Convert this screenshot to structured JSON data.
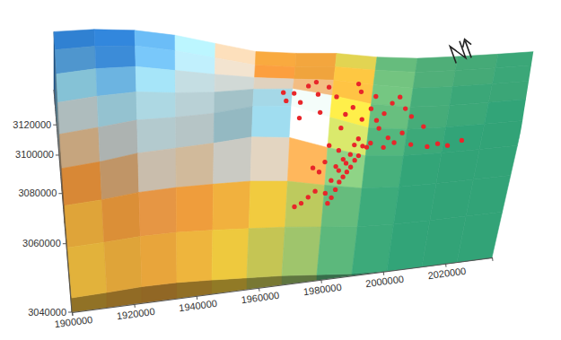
{
  "chart_data": {
    "type": "surface",
    "xlim": [
      1900000,
      2035000
    ],
    "ylim": [
      3040000,
      3150000
    ],
    "xticks": [
      1900000,
      1920000,
      1940000,
      1960000,
      1980000,
      2000000,
      2020000
    ],
    "yticks": [
      3040000,
      3060000,
      3080000,
      3100000,
      3120000
    ],
    "surface": {
      "zlim": [
        0,
        100
      ],
      "z": [
        [
          40,
          42,
          43,
          41,
          38,
          35,
          32,
          26,
          23,
          22,
          22,
          22
        ],
        [
          42,
          45,
          47,
          45,
          42,
          38,
          34,
          27,
          23,
          22,
          22,
          22
        ],
        [
          46,
          52,
          58,
          56,
          60,
          58,
          48,
          30,
          24,
          22,
          22,
          22
        ],
        [
          54,
          62,
          66,
          64,
          70,
          74,
          60,
          34,
          25,
          23,
          22,
          22
        ],
        [
          64,
          72,
          70,
          66,
          68,
          72,
          62,
          38,
          27,
          24,
          23,
          22
        ],
        [
          76,
          82,
          74,
          66,
          62,
          58,
          52,
          42,
          28,
          24,
          23,
          23
        ],
        [
          86,
          90,
          82,
          70,
          58,
          46,
          44,
          40,
          28,
          25,
          24,
          23
        ],
        [
          94,
          92,
          84,
          72,
          56,
          44,
          44,
          36,
          27,
          25,
          24,
          23
        ]
      ]
    },
    "series": [
      {
        "type": "scatter",
        "color": "#e8262a",
        "marker": "circle",
        "x": [
          1980000,
          1981000,
          1979000,
          1982000,
          1983000,
          1980500,
          1984000,
          1978500,
          1985000,
          1982500,
          1986000,
          1981500,
          1984500,
          1987000,
          1983500,
          1988000,
          1985500,
          1982000,
          1989000,
          1986500,
          1977000,
          1976000,
          1974000,
          1972000,
          1970000,
          1975000,
          1990000,
          1991000,
          1987500,
          1979000,
          1995000,
          1998000,
          2003000,
          2008000,
          2011000,
          2014000,
          2018000,
          1996000,
          2000000,
          1993000,
          2006000,
          1965000,
          1968000,
          1970000,
          1972000,
          1975000,
          1978000,
          1980000,
          1983000,
          1985000,
          1987000,
          1990000,
          1992000,
          1994000,
          1996000,
          1998000,
          2000000,
          2002000,
          1988000,
          1982000,
          1976000,
          1970000,
          1966000,
          1974000,
          1986000,
          1991000
        ],
        "y": [
          3062000,
          3064000,
          3066000,
          3067000,
          3069000,
          3070000,
          3071000,
          3072000,
          3073000,
          3074000,
          3075000,
          3076000,
          3077000,
          3078000,
          3079000,
          3080000,
          3081000,
          3082000,
          3083000,
          3084000,
          3068000,
          3065000,
          3063000,
          3061000,
          3060000,
          3070000,
          3086000,
          3088000,
          3087000,
          3085000,
          3085000,
          3087000,
          3086000,
          3084000,
          3085000,
          3084000,
          3086000,
          3090000,
          3092000,
          3095000,
          3095000,
          3100000,
          3104000,
          3098000,
          3108000,
          3102000,
          3106000,
          3110000,
          3100000,
          3104000,
          3112000,
          3108000,
          3100000,
          3104000,
          3110000,
          3114000,
          3106000,
          3102000,
          3096000,
          3094000,
          3092000,
          3090000,
          3094000,
          3116000,
          3118000,
          3116000
        ]
      }
    ]
  }
}
